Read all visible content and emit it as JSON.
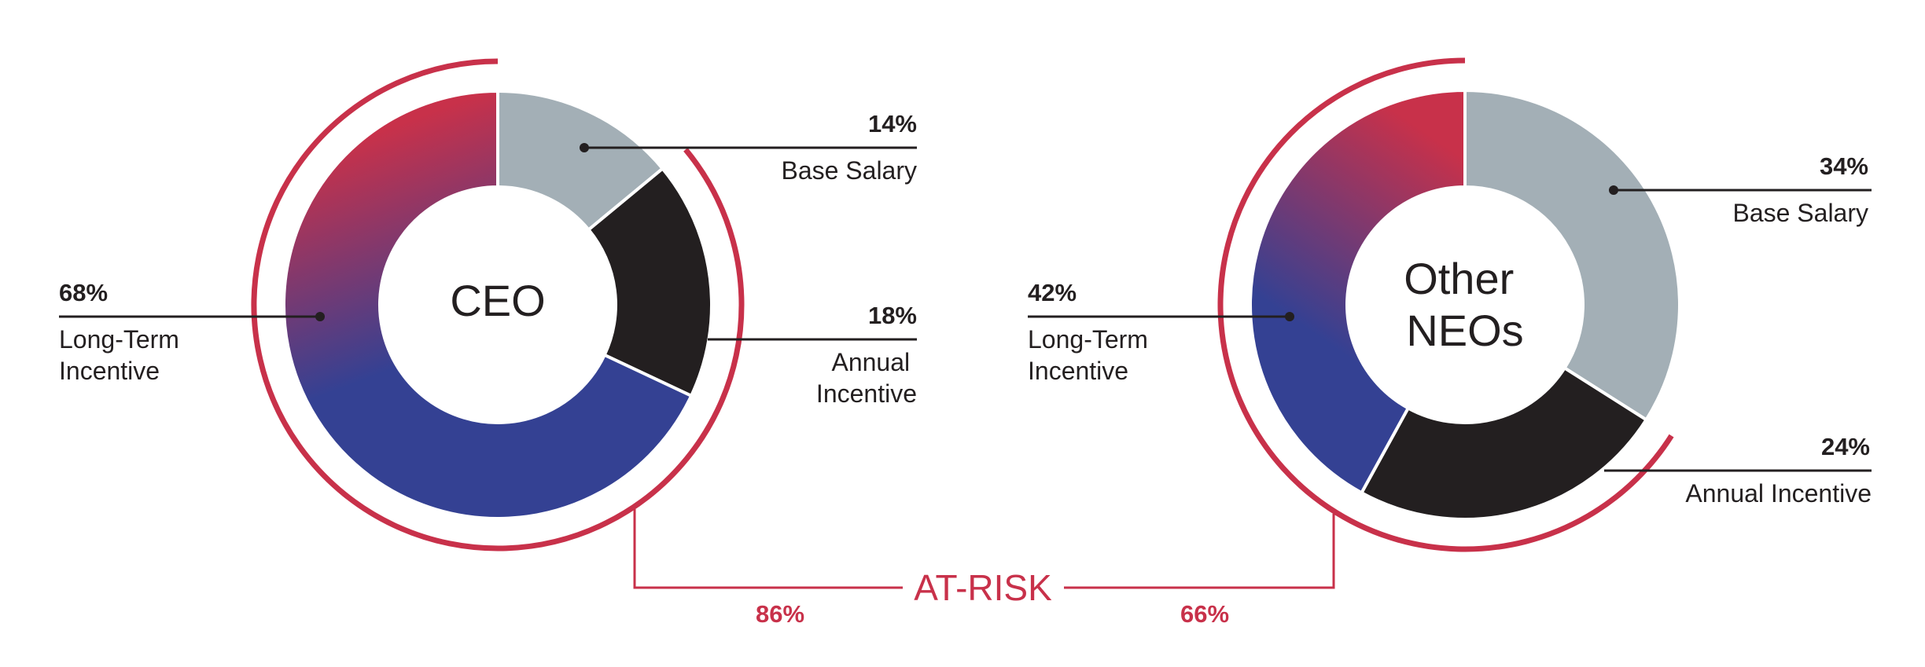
{
  "chart_data": [
    {
      "type": "donut",
      "center_label": [
        "CEO"
      ],
      "categories": [
        "Base Salary",
        "Annual Incentive",
        "Long-Term Incentive"
      ],
      "values": [
        14,
        18,
        68
      ],
      "value_labels": [
        "14%",
        "18%",
        "68%"
      ],
      "at_risk_value": 86,
      "at_risk_label": "86%"
    },
    {
      "type": "donut",
      "center_label": [
        "Other",
        "NEOs"
      ],
      "categories": [
        "Base Salary",
        "Annual Incentive",
        "Long-Term Incentive"
      ],
      "values": [
        34,
        24,
        42
      ],
      "value_labels": [
        "34%",
        "24%",
        "42%"
      ],
      "at_risk_value": 66,
      "at_risk_label": "66%"
    }
  ],
  "at_risk_title": "AT-RISK",
  "colors": {
    "base_salary": "#a3afb6",
    "annual_incentive": "#231f20",
    "long_term_incentive_start": "#c8314a",
    "long_term_incentive_end": "#344193",
    "at_risk": "#c8314a",
    "text": "#231f20"
  }
}
